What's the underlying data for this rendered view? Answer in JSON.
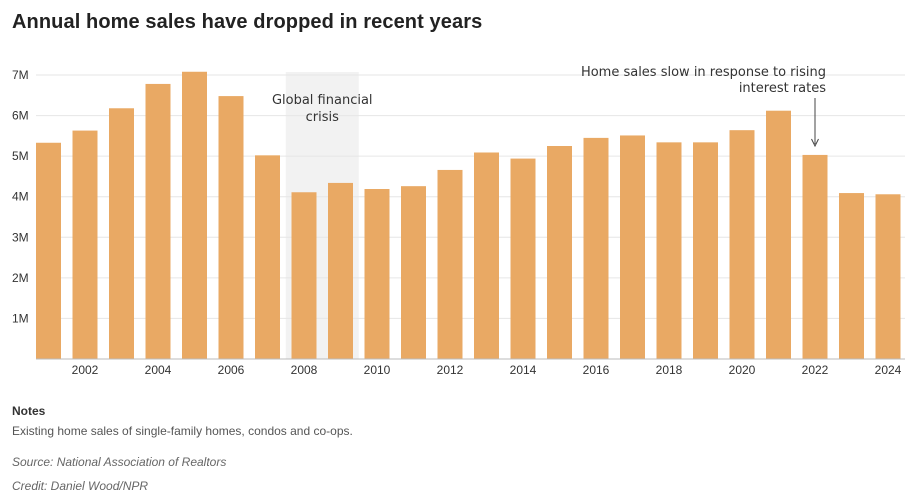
{
  "title": "Annual home sales have dropped in recent years",
  "notes": {
    "heading": "Notes",
    "text": "Existing home sales of single-family homes, condos and co-ops.",
    "source": "Source: National Association of Realtors",
    "credit": "Credit: Daniel Wood/NPR"
  },
  "colors": {
    "bar": "#e9a964",
    "shade": "#f2f2f2",
    "grid": "#e6e6e6",
    "baseline": "#bbbbbb"
  },
  "chart_data": {
    "type": "bar",
    "title": "Annual home sales have dropped in recent years",
    "xlabel": "",
    "ylabel": "",
    "ylim": [
      0,
      7000000
    ],
    "grid": true,
    "categories": [
      2001,
      2002,
      2003,
      2004,
      2005,
      2006,
      2007,
      2008,
      2009,
      2010,
      2011,
      2012,
      2013,
      2014,
      2015,
      2016,
      2017,
      2018,
      2019,
      2020,
      2021,
      2022,
      2023,
      2024
    ],
    "values": [
      5330000,
      5630000,
      6180000,
      6780000,
      7080000,
      6480000,
      5020000,
      4110000,
      4340000,
      4190000,
      4260000,
      4660000,
      5090000,
      4940000,
      5250000,
      5450000,
      5510000,
      5340000,
      5340000,
      5640000,
      6120000,
      5030000,
      4090000,
      4060000
    ],
    "y_ticks": [
      {
        "value": 1000000,
        "label": "1M"
      },
      {
        "value": 2000000,
        "label": "2M"
      },
      {
        "value": 3000000,
        "label": "3M"
      },
      {
        "value": 4000000,
        "label": "4M"
      },
      {
        "value": 5000000,
        "label": "5M"
      },
      {
        "value": 6000000,
        "label": "6M"
      },
      {
        "value": 7000000,
        "label": "7M"
      }
    ],
    "x_ticks": [
      "2002",
      "2004",
      "2006",
      "2008",
      "2010",
      "2012",
      "2014",
      "2016",
      "2018",
      "2020",
      "2022",
      "2024"
    ],
    "shaded_range": {
      "from": 2008,
      "to": 2009,
      "label_lines": [
        "Global financial",
        "crisis"
      ]
    },
    "annotation": {
      "target": 2022,
      "label_lines": [
        "Home sales slow in response to rising",
        "interest rates"
      ]
    }
  }
}
